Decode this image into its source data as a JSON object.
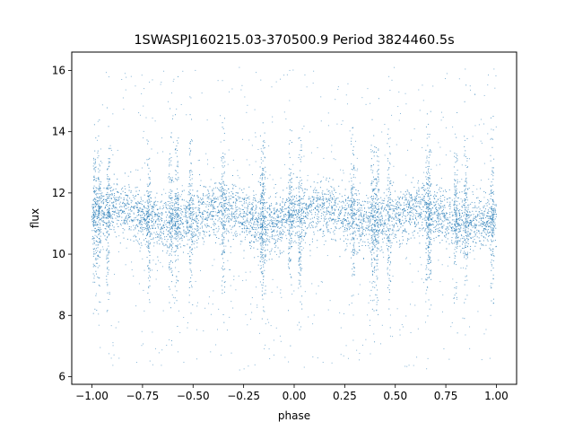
{
  "chart_data": {
    "type": "scatter",
    "title": "1SWASPJ160215.03-370500.9 Period 3824460.5s",
    "xlabel": "phase",
    "ylabel": "flux",
    "xlim": [
      -1.1,
      1.1
    ],
    "ylim": [
      5.75,
      16.6
    ],
    "xticks": [
      -1.0,
      -0.75,
      -0.5,
      -0.25,
      0.0,
      0.25,
      0.5,
      0.75,
      1.0
    ],
    "xtick_labels": [
      "−1.00",
      "−0.75",
      "−0.50",
      "−0.25",
      "0.00",
      "0.25",
      "0.50",
      "0.75",
      "1.00"
    ],
    "yticks": [
      6,
      8,
      10,
      12,
      14,
      16
    ],
    "ytick_labels": [
      "6",
      "8",
      "10",
      "12",
      "14",
      "16"
    ],
    "grid": false,
    "legend": "none",
    "marker_color": "#1f77b4",
    "series": [
      {
        "points_summary": "dense light-curve band, flux mostly 10 to 12.5 across phase -1 to 1, sparse scatter 6 to 16",
        "x": [
          -0.98,
          -0.96,
          -0.93,
          -0.9,
          -0.87,
          -0.84,
          -0.8,
          -0.76,
          -0.72,
          -0.69,
          -0.66,
          -0.63,
          -0.6,
          -0.57,
          -0.53,
          -0.5,
          -0.47,
          -0.43,
          -0.4,
          -0.36,
          -0.33,
          -0.3,
          -0.27,
          -0.23,
          -0.2,
          -0.17,
          -0.14,
          -0.1,
          -0.07,
          -0.04,
          0.0,
          0.03,
          0.06,
          0.1,
          0.13,
          0.17,
          0.2,
          0.23,
          0.27,
          0.3,
          0.33,
          0.37,
          0.4,
          0.43,
          0.47,
          0.5,
          0.53,
          0.57,
          0.6,
          0.64,
          0.67,
          0.7,
          0.73,
          0.77,
          0.8,
          0.84,
          0.87,
          0.9,
          0.93,
          0.97,
          1.0
        ],
        "y": [
          11.3,
          11.0,
          11.6,
          11.2,
          10.9,
          11.4,
          11.1,
          11.5,
          10.8,
          11.3,
          11.7,
          10.9,
          11.2,
          11.5,
          11.0,
          11.3,
          11.6,
          11.1,
          10.8,
          11.4,
          11.2,
          11.7,
          10.9,
          11.3,
          11.0,
          11.5,
          11.2,
          10.9,
          11.6,
          11.1,
          11.3,
          11.0,
          11.5,
          11.2,
          10.8,
          11.4,
          11.7,
          11.1,
          11.0,
          11.3,
          11.6,
          10.9,
          11.2,
          11.5,
          11.1,
          11.3,
          11.0,
          11.6,
          10.9,
          11.4,
          11.2,
          11.5,
          11.0,
          11.3,
          10.8,
          11.6,
          11.1,
          11.4,
          10.9,
          11.2,
          11.3
        ]
      }
    ]
  }
}
